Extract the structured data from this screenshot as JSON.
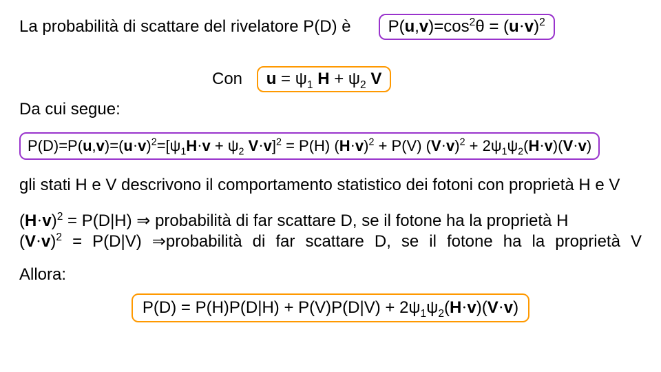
{
  "line1_text": "La probabilità di scattare del rivelatore P(D) è",
  "box1": {
    "pre": "P(",
    "uv": "u",
    "comma": ",",
    "v": "v",
    "mid": ")=cos",
    "sup2": "2",
    "theta": "θ = (",
    "uu": "u",
    "dot": "·",
    "vv": "v",
    "close": ")",
    "sup2b": "2"
  },
  "con_label": "Con",
  "box2_parts": {
    "u": "u",
    "eq": " = ψ",
    "s1": "1",
    "sp": " ",
    "H": "H",
    "plus": " + ψ",
    "s2": "2",
    "sp2": " ",
    "V": "V"
  },
  "line3": "Da cui segue:",
  "box3_parts": {
    "a": "P(D)=P(",
    "u": "u",
    "c1": ",",
    "v": "v",
    "b": ")=(",
    "u2": "u",
    "d1": "·",
    "v2": "v",
    "c": ")",
    "e2a": "2",
    "d": "=[ψ",
    "s1": "1",
    "H": "H",
    "d2": "·",
    "v3": "v",
    "plus": " + ψ",
    "s2": "2",
    "sp": " ",
    "V": "V",
    "d3": "·",
    "v4": "v",
    "brk": "]",
    "e2b": "2",
    "eqconst": " = ",
    "eq": "P(H) (",
    "H2": "H",
    "d4": "·",
    "v5": "v",
    "cl1": ")",
    "e2c": "2",
    "pvconst": " + ",
    "pv": "P(V) (",
    "V2": "V",
    "d5": "·",
    "v6": "v",
    "cl2": ")",
    "e2d": "2",
    "cross": " + 2ψ",
    "s1b": "1",
    "psi2": "ψ",
    "s2b": "2",
    "op": "(",
    "H3": "H",
    "d6": "·",
    "v7": "v",
    "mm": ")(",
    "V3": "V",
    "d7": "·",
    "v8": "v",
    "cl3": ")"
  },
  "line5": "gli stati H e V descrivono il comportamento statistico dei fotoni con proprietà H e V",
  "line6": {
    "p1a": "(",
    "H": "H",
    "d": "·",
    "v": "v",
    "p1b": ")",
    "sup": "2",
    "rest": " = P(D|H) ⇒ probabilità di far scattare D, se il fotone ha la proprietà H"
  },
  "line7": {
    "p1a": "(",
    "V": "V",
    "d": "·",
    "v": "v",
    "p1b": ")",
    "sup": "2",
    "rest": " =  P(D|V)  ⇒probabilità  di  far  scattare  D,  se  il  fotone  ha  la  proprietà  V"
  },
  "line8": "Allora:",
  "box4": {
    "a": "P(D) = P(H)P(D|H) + P(V)P(D|V) + 2ψ",
    "s1": "1",
    "psi": "ψ",
    "s2": "2",
    "op": "(",
    "H": "H",
    "d1": "·",
    "v1": "v",
    "mm": ")(",
    "V": "V",
    "d2": "·",
    "v2": "v",
    "cl": ")"
  },
  "colors": {
    "purple": "#9933cc",
    "orange": "#ff9900"
  }
}
